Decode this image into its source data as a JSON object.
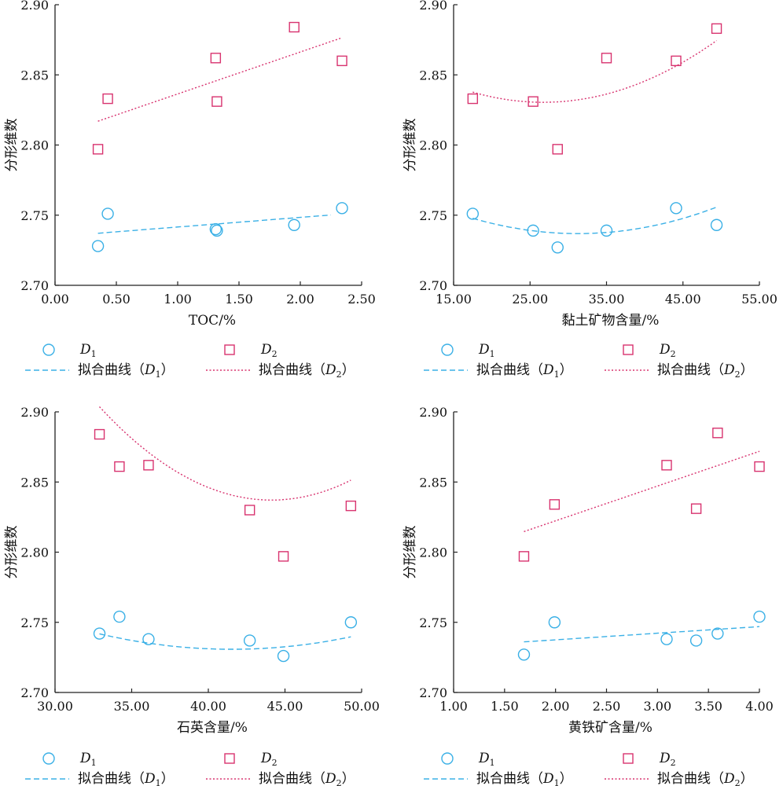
{
  "colors": {
    "d1": "#3ab0e6",
    "d2": "#d8336f",
    "axis": "#222222"
  },
  "legend": {
    "d1_symbol": "D",
    "d1_sub": "1",
    "d2_symbol": "D",
    "d2_sub": "2",
    "fit_prefix": "拟合曲线（",
    "fit_suffix": "）"
  },
  "chart_data": [
    {
      "type": "scatter",
      "xlabel": "TOC/%",
      "ylabel": "分形维数",
      "xlim": [
        0.0,
        2.5
      ],
      "ylim": [
        2.7,
        2.9
      ],
      "xticks": [
        "0.00",
        "0.50",
        "1.00",
        "1.50",
        "2.00",
        "2.50"
      ],
      "yticks": [
        "2.70",
        "2.75",
        "2.80",
        "2.85",
        "2.90"
      ],
      "series": [
        {
          "name": "D1",
          "marker": "circle",
          "x": [
            0.35,
            0.43,
            1.31,
            1.32,
            1.95,
            2.34
          ],
          "y": [
            2.728,
            2.751,
            2.74,
            2.739,
            2.743,
            2.755
          ]
        },
        {
          "name": "D2",
          "marker": "square",
          "x": [
            0.35,
            0.43,
            1.31,
            1.32,
            1.95,
            2.34
          ],
          "y": [
            2.797,
            2.833,
            2.862,
            2.831,
            2.884,
            2.86
          ]
        }
      ],
      "fits": [
        {
          "series": "D1",
          "style": "dashed",
          "fit": "linear",
          "x_range": [
            0.35,
            2.25
          ],
          "coef": [
            2.7347,
            0.00686
          ]
        },
        {
          "series": "D2",
          "style": "dotted",
          "fit": "linear",
          "x_range": [
            0.35,
            2.34
          ],
          "coef": [
            2.8065,
            0.0299
          ]
        }
      ]
    },
    {
      "type": "scatter",
      "xlabel": "黏土矿物含量/%",
      "ylabel": "分形维数",
      "xlim": [
        15.0,
        55.0
      ],
      "ylim": [
        2.7,
        2.9
      ],
      "xticks": [
        "15.00",
        "25.00",
        "35.00",
        "45.00",
        "55.00"
      ],
      "yticks": [
        "2.70",
        "2.75",
        "2.80",
        "2.85",
        "2.90"
      ],
      "series": [
        {
          "name": "D1",
          "marker": "circle",
          "x": [
            17.5,
            25.4,
            28.6,
            35.0,
            44.1,
            49.4
          ],
          "y": [
            2.751,
            2.739,
            2.727,
            2.739,
            2.755,
            2.743
          ]
        },
        {
          "name": "D2",
          "marker": "square",
          "x": [
            17.5,
            25.4,
            28.6,
            35.0,
            44.1,
            49.4
          ],
          "y": [
            2.833,
            2.831,
            2.797,
            2.862,
            2.86,
            2.883
          ]
        }
      ],
      "fits": [
        {
          "series": "D1",
          "style": "dashed",
          "fit": "quadratic",
          "x_range": [
            17.5,
            49.4
          ],
          "coef": [
            2.793134,
            -0.0035975,
            5.75e-05
          ]
        },
        {
          "series": "D2",
          "style": "dotted",
          "fit": "quadratic",
          "x_range": [
            17.5,
            49.4
          ],
          "coef": [
            2.891475,
            -0.0045686,
            8.55e-05
          ]
        }
      ]
    },
    {
      "type": "scatter",
      "xlabel": "石英含量/%",
      "ylabel": "分形维数",
      "xlim": [
        30.0,
        50.0
      ],
      "ylim": [
        2.7,
        2.9
      ],
      "xticks": [
        "30.00",
        "35.00",
        "40.00",
        "45.00",
        "50.00"
      ],
      "yticks": [
        "2.70",
        "2.75",
        "2.80",
        "2.85",
        "2.90"
      ],
      "series": [
        {
          "name": "D1",
          "marker": "circle",
          "x": [
            32.9,
            34.2,
            36.1,
            42.7,
            44.9,
            49.3
          ],
          "y": [
            2.742,
            2.754,
            2.738,
            2.737,
            2.726,
            2.75
          ]
        },
        {
          "name": "D2",
          "marker": "square",
          "x": [
            32.9,
            34.2,
            36.1,
            42.7,
            44.9,
            49.3
          ],
          "y": [
            2.884,
            2.861,
            2.862,
            2.83,
            2.797,
            2.833
          ]
        }
      ],
      "fits": [
        {
          "series": "D1",
          "style": "dashed",
          "fit": "quadratic",
          "x_range": [
            32.9,
            49.3
          ],
          "coef": [
            2.9849,
            -0.012236,
            0.0001473
          ]
        },
        {
          "series": "D2",
          "style": "dotted",
          "fit": "quadratic",
          "x_range": [
            32.9,
            49.3
          ],
          "coef": [
            3.86565,
            -0.046625,
            0.0005284
          ]
        }
      ]
    },
    {
      "type": "scatter",
      "xlabel": "黄铁矿含量/%",
      "ylabel": "分形维数",
      "xlim": [
        1.0,
        4.0
      ],
      "ylim": [
        2.7,
        2.9
      ],
      "xticks": [
        "1.00",
        "1.50",
        "2.00",
        "2.50",
        "3.00",
        "3.50",
        "4.00"
      ],
      "yticks": [
        "2.70",
        "2.75",
        "2.80",
        "2.85",
        "2.90"
      ],
      "series": [
        {
          "name": "D1",
          "marker": "circle",
          "x": [
            1.69,
            1.99,
            3.09,
            3.38,
            3.59,
            4.0
          ],
          "y": [
            2.727,
            2.75,
            2.738,
            2.737,
            2.742,
            2.754
          ]
        },
        {
          "name": "D2",
          "marker": "square",
          "x": [
            1.69,
            1.99,
            3.09,
            3.38,
            3.59,
            4.0
          ],
          "y": [
            2.797,
            2.834,
            2.862,
            2.831,
            2.885,
            2.861
          ]
        }
      ],
      "fits": [
        {
          "series": "D1",
          "style": "dashed",
          "fit": "linear",
          "x_range": [
            1.69,
            4.0
          ],
          "coef": [
            2.7281,
            0.004708
          ]
        },
        {
          "series": "D2",
          "style": "dotted",
          "fit": "linear",
          "x_range": [
            1.69,
            4.0
          ],
          "coef": [
            2.7728,
            0.024771
          ]
        }
      ]
    }
  ]
}
